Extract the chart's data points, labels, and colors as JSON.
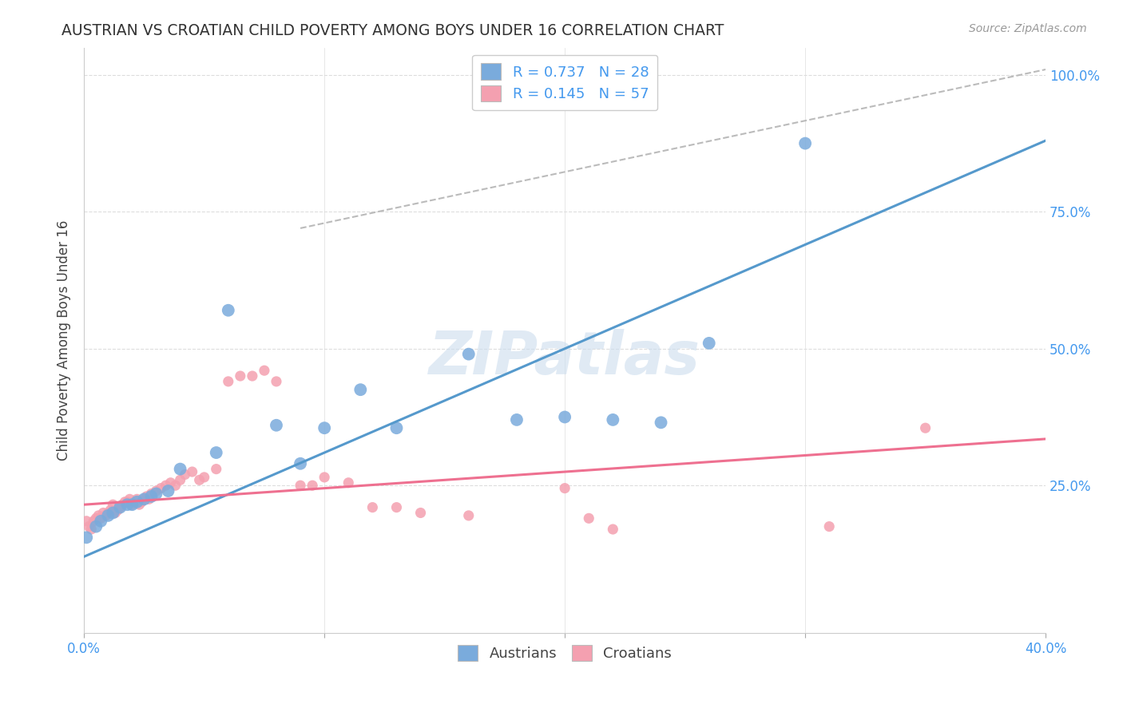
{
  "title": "AUSTRIAN VS CROATIAN CHILD POVERTY AMONG BOYS UNDER 16 CORRELATION CHART",
  "source": "Source: ZipAtlas.com",
  "ylabel": "Child Poverty Among Boys Under 16",
  "xlim": [
    0.0,
    0.4
  ],
  "ylim": [
    -0.02,
    1.05
  ],
  "watermark": "ZIPatlas",
  "legend_austrians": "R = 0.737   N = 28",
  "legend_croatians": "R = 0.145   N = 57",
  "legend_label1": "Austrians",
  "legend_label2": "Croatians",
  "blue_color": "#7AABDC",
  "pink_color": "#F4A0B0",
  "blue_line_color": "#5599CC",
  "pink_line_color": "#EE7090",
  "dashed_line_color": "#BBBBBB",
  "title_color": "#333333",
  "axis_label_color": "#444444",
  "tick_color": "#4499EE",
  "background_color": "#FFFFFF",
  "watermark_color": "#CCDDEE",
  "austrians_x": [
    0.001,
    0.005,
    0.007,
    0.01,
    0.012,
    0.015,
    0.018,
    0.02,
    0.022,
    0.025,
    0.028,
    0.03,
    0.035,
    0.04,
    0.055,
    0.06,
    0.08,
    0.09,
    0.1,
    0.115,
    0.13,
    0.16,
    0.18,
    0.2,
    0.22,
    0.24,
    0.26,
    0.3
  ],
  "austrians_y": [
    0.155,
    0.175,
    0.185,
    0.195,
    0.2,
    0.21,
    0.215,
    0.215,
    0.22,
    0.225,
    0.23,
    0.235,
    0.24,
    0.28,
    0.31,
    0.57,
    0.36,
    0.29,
    0.355,
    0.425,
    0.355,
    0.49,
    0.37,
    0.375,
    0.37,
    0.365,
    0.51,
    0.875
  ],
  "croatians_x": [
    0.001,
    0.002,
    0.003,
    0.004,
    0.005,
    0.006,
    0.007,
    0.008,
    0.009,
    0.01,
    0.011,
    0.012,
    0.013,
    0.014,
    0.015,
    0.016,
    0.017,
    0.018,
    0.019,
    0.02,
    0.021,
    0.022,
    0.023,
    0.024,
    0.025,
    0.026,
    0.027,
    0.028,
    0.03,
    0.032,
    0.034,
    0.036,
    0.038,
    0.04,
    0.042,
    0.045,
    0.048,
    0.05,
    0.055,
    0.06,
    0.065,
    0.07,
    0.075,
    0.08,
    0.09,
    0.095,
    0.1,
    0.11,
    0.12,
    0.13,
    0.14,
    0.16,
    0.2,
    0.21,
    0.22,
    0.31,
    0.35
  ],
  "croatians_y": [
    0.185,
    0.175,
    0.17,
    0.185,
    0.19,
    0.195,
    0.19,
    0.2,
    0.195,
    0.2,
    0.205,
    0.215,
    0.2,
    0.205,
    0.21,
    0.215,
    0.22,
    0.22,
    0.225,
    0.215,
    0.22,
    0.225,
    0.215,
    0.22,
    0.225,
    0.23,
    0.225,
    0.235,
    0.24,
    0.245,
    0.25,
    0.255,
    0.25,
    0.26,
    0.27,
    0.275,
    0.26,
    0.265,
    0.28,
    0.44,
    0.45,
    0.45,
    0.46,
    0.44,
    0.25,
    0.25,
    0.265,
    0.255,
    0.21,
    0.21,
    0.2,
    0.195,
    0.245,
    0.19,
    0.17,
    0.175,
    0.355
  ],
  "marker_size_austrians": 130,
  "marker_size_croatians": 90,
  "grid_color": "#DDDDDD",
  "ytick_vals": [
    0.0,
    0.25,
    0.5,
    0.75,
    1.0
  ],
  "ytick_labels": [
    "",
    "25.0%",
    "50.0%",
    "75.0%",
    "100.0%"
  ],
  "xtick_vals": [
    0.0,
    0.1,
    0.2,
    0.3,
    0.4
  ],
  "xtick_show": [
    "0.0%",
    "",
    "",
    "",
    "40.0%"
  ],
  "blue_line_x": [
    0.0,
    0.4
  ],
  "blue_line_y": [
    0.12,
    0.88
  ],
  "pink_line_x": [
    0.0,
    0.4
  ],
  "pink_line_y": [
    0.215,
    0.335
  ],
  "dash_line_x": [
    0.09,
    0.4
  ],
  "dash_line_y": [
    0.72,
    1.01
  ]
}
